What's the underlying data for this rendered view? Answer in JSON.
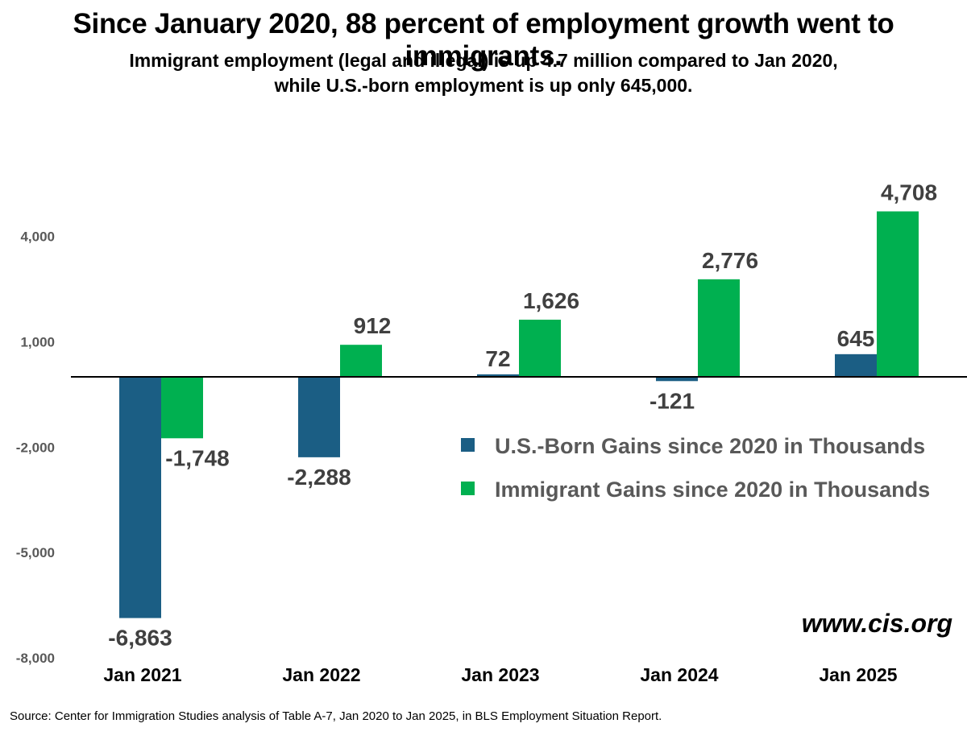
{
  "title": "Since January 2020, 88 percent of employment growth went to immigrants.",
  "subtitle_line1": "Immigrant employment (legal and illegal) is up 4.7 million compared to Jan 2020,",
  "subtitle_line2": "while U.S.-born employment is up only 645,000.",
  "watermark": "www.cis.org",
  "source": "Source: Center for Immigration Studies analysis of Table A-7, Jan 2020 to Jan 2025, in BLS Employment Situation Report.",
  "colors": {
    "us_born": "#1b5e84",
    "immigrant": "#00b050",
    "axis_line": "#000000"
  },
  "chart_data": {
    "type": "bar",
    "categories": [
      "Jan 2021",
      "Jan 2022",
      "Jan 2023",
      "Jan 2024",
      "Jan 2025"
    ],
    "series": [
      {
        "name": "U.S.-Born Gains since 2020 in Thousands",
        "values": [
          -6863,
          -2288,
          72,
          -121,
          645
        ],
        "labels": [
          "-6,863",
          "-2,288",
          "72",
          "-121",
          "645"
        ]
      },
      {
        "name": "Immigrant Gains since 2020 in Thousands",
        "values": [
          -1748,
          912,
          1626,
          2776,
          4708
        ],
        "labels": [
          "-1,748",
          "912",
          "1,626",
          "2,776",
          "4,708"
        ]
      }
    ],
    "yticks": [
      -8000,
      -5000,
      -2000,
      1000,
      4000
    ],
    "ytick_labels": [
      "-8,000",
      "-5,000",
      "-2,000",
      "1,000",
      "4,000"
    ],
    "ylim": [
      -8000,
      4708
    ],
    "legend_position": "right",
    "grid": false
  }
}
